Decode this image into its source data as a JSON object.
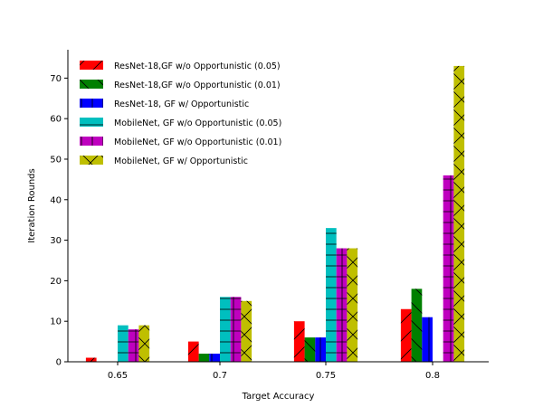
{
  "chart_data": {
    "type": "bar",
    "title": "",
    "xlabel": "Target Accuracy",
    "ylabel": "Iteration Rounds",
    "categories": [
      "0.65",
      "0.7",
      "0.75",
      "0.8"
    ],
    "ylim": [
      0,
      77
    ],
    "yticks": [
      0,
      10,
      20,
      30,
      40,
      50,
      60,
      70
    ],
    "grid": false,
    "legend_position": "top-left",
    "series": [
      {
        "name": "ResNet-18,GF w/o Opportunistic (0.05)",
        "color": "#ff0000",
        "hatch": "diagonal",
        "values": [
          1,
          5,
          10,
          13
        ]
      },
      {
        "name": "ResNet-18,GF w/o Opportunistic (0.01)",
        "color": "#008000",
        "hatch": "diagonal-back",
        "values": [
          0,
          2,
          6,
          18
        ]
      },
      {
        "name": "ResNet-18, GF w/ Opportunistic",
        "color": "#0000ff",
        "hatch": "vertical",
        "values": [
          0,
          2,
          6,
          11
        ]
      },
      {
        "name": "MobileNet, GF w/o Opportunistic (0.05)",
        "color": "#00bfbf",
        "hatch": "horizontal",
        "values": [
          9,
          16,
          33,
          0
        ]
      },
      {
        "name": "MobileNet, GF w/o Opportunistic (0.01)",
        "color": "#bf00bf",
        "hatch": "plus",
        "values": [
          8,
          16,
          28,
          46
        ]
      },
      {
        "name": "MobileNet, GF w/ Opportunistic",
        "color": "#bfbf00",
        "hatch": "cross",
        "values": [
          9,
          15,
          28,
          73
        ]
      }
    ]
  }
}
